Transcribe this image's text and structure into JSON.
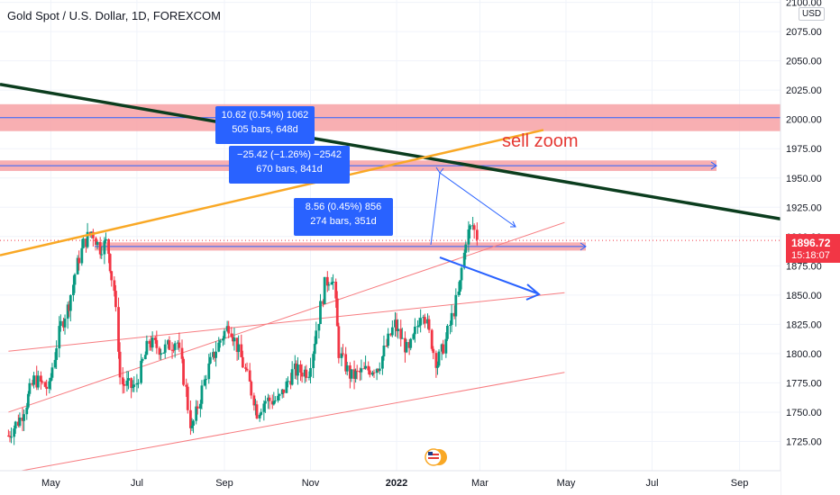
{
  "header": {
    "title": "Gold Spot / U.S. Dollar, 1D, FOREXCOM",
    "currency": "USD"
  },
  "last_price": {
    "value": "1896.72",
    "countdown": "15:18:07",
    "color": "#f23645"
  },
  "colors": {
    "up": "#089981",
    "down": "#f23645",
    "channel": "#f77c80",
    "trend_dark": "#0b3d1e",
    "trend_yellow": "#f9a825",
    "zone": "#f7a1a5",
    "measure": "#2962ff",
    "arrow": "#2962ff"
  },
  "annotations": {
    "measure_1": {
      "line1": "10.62 (0.54%) 1062",
      "line2": "505 bars, 648d"
    },
    "measure_2": {
      "line1": "−25.42 (−1.26%) −2542",
      "line2": "670 bars, 841d"
    },
    "measure_3": {
      "line1": "8.56 (0.45%) 856",
      "line2": "274 bars, 351d"
    },
    "sell_text": "sell zoom"
  },
  "chart_data": {
    "type": "candlestick",
    "title": "Gold Spot / U.S. Dollar, 1D, FOREXCOM",
    "x_ticks": [
      "May",
      "Jul",
      "Sep",
      "Nov",
      "2022",
      "Mar",
      "May",
      "Jul",
      "Sep"
    ],
    "y_ticks": [
      "1725.00",
      "1750.00",
      "1775.00",
      "1800.00",
      "1825.00",
      "1850.00",
      "1875.00",
      "1900.00",
      "1925.00",
      "1950.00",
      "1975.00",
      "2000.00",
      "2025.00",
      "2050.00",
      "2075.00",
      "2100.00"
    ],
    "ylim": [
      1700,
      2102
    ],
    "series_close_path": [
      [
        "2021-04-01",
        1730
      ],
      [
        "2021-04-10",
        1745
      ],
      [
        "2021-04-20",
        1778
      ],
      [
        "2021-04-30",
        1770
      ],
      [
        "2021-05-08",
        1822
      ],
      [
        "2021-05-15",
        1845
      ],
      [
        "2021-05-20",
        1875
      ],
      [
        "2021-05-25",
        1895
      ],
      [
        "2021-05-31",
        1905
      ],
      [
        "2021-06-05",
        1890
      ],
      [
        "2021-06-10",
        1895
      ],
      [
        "2021-06-16",
        1850
      ],
      [
        "2021-06-20",
        1775
      ],
      [
        "2021-06-30",
        1770
      ],
      [
        "2021-07-10",
        1810
      ],
      [
        "2021-07-20",
        1803
      ],
      [
        "2021-07-30",
        1812
      ],
      [
        "2021-08-05",
        1770
      ],
      [
        "2021-08-09",
        1732
      ],
      [
        "2021-08-20",
        1785
      ],
      [
        "2021-08-31",
        1815
      ],
      [
        "2021-09-05",
        1825
      ],
      [
        "2021-09-15",
        1790
      ],
      [
        "2021-09-25",
        1750
      ],
      [
        "2021-09-30",
        1760
      ],
      [
        "2021-10-10",
        1760
      ],
      [
        "2021-10-20",
        1785
      ],
      [
        "2021-10-31",
        1785
      ],
      [
        "2021-11-05",
        1815
      ],
      [
        "2021-11-12",
        1860
      ],
      [
        "2021-11-17",
        1868
      ],
      [
        "2021-11-22",
        1800
      ],
      [
        "2021-11-30",
        1780
      ],
      [
        "2021-12-10",
        1785
      ],
      [
        "2021-12-20",
        1790
      ],
      [
        "2021-12-31",
        1825
      ],
      [
        "2022-01-10",
        1800
      ],
      [
        "2022-01-20",
        1840
      ],
      [
        "2022-01-30",
        1790
      ],
      [
        "2022-02-05",
        1810
      ],
      [
        "2022-02-15",
        1855
      ],
      [
        "2022-02-20",
        1900
      ],
      [
        "2022-02-24",
        1910
      ],
      [
        "2022-02-28",
        1897
      ]
    ],
    "last_price": 1896.72,
    "zones": [
      [
        1990,
        2013
      ],
      [
        1956,
        1965
      ],
      [
        1888,
        1895
      ]
    ],
    "channel_lines": [
      [
        [
          "2021-04-01",
          1750
        ],
        [
          "2022-04-30",
          1912
        ]
      ],
      [
        [
          "2021-04-01",
          1802
        ],
        [
          "2022-04-30",
          1852
        ]
      ],
      [
        [
          "2021-04-01",
          1698
        ],
        [
          "2022-04-30",
          1784
        ]
      ]
    ],
    "trendlines": [
      {
        "name": "",
        "points": [
          [
            "2021-03-26",
            2030
          ],
          [
            "2022-09-30",
            1915
          ]
        ]
      },
      {
        "name": "",
        "points": [
          [
            "2021-03-26",
            1884
          ],
          [
            "2022-04-15",
            1991
          ]
        ]
      }
    ],
    "legend": "none",
    "grid": true
  }
}
